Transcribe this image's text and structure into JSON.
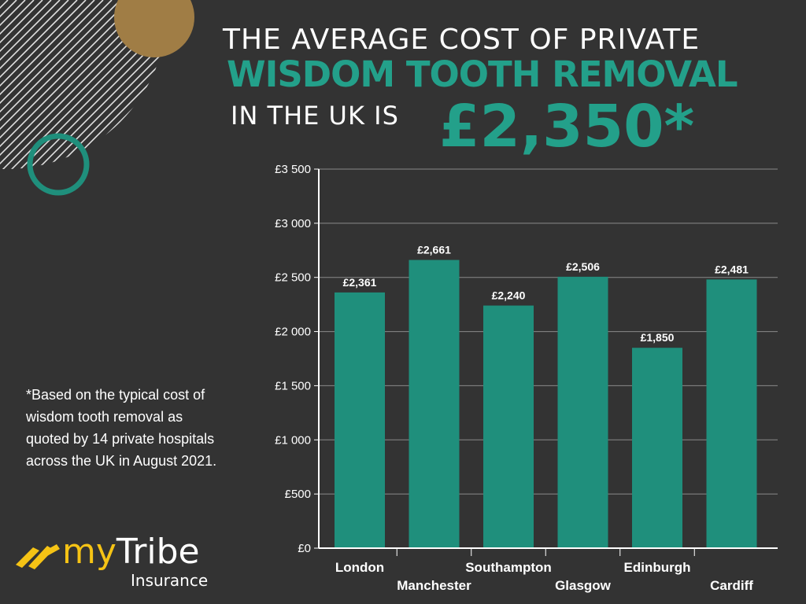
{
  "headline": {
    "line1": "THE AVERAGE COST OF PRIVATE",
    "line2": "WISDOM TOOTH REMOVAL",
    "line3": "IN THE UK IS",
    "price": "£2,350*"
  },
  "footnote": "*Based on the typical cost of wisdom tooth removal as quoted by 14 private hospitals across the UK in August 2021.",
  "logo": {
    "name_part1": "my",
    "name_part2": "Tribe",
    "subtitle": "Insurance"
  },
  "colors": {
    "background": "#333333",
    "accent_teal": "#23a08a",
    "bar_fill": "#1f8f7c",
    "logo_yellow": "#f5c315",
    "deco_gold": "#a07d45"
  },
  "chart_data": {
    "type": "bar",
    "categories": [
      "London",
      "Manchester",
      "Southampton",
      "Glasgow",
      "Edinburgh",
      "Cardiff"
    ],
    "values": [
      2361,
      2661,
      2240,
      2506,
      1850,
      2481
    ],
    "value_labels": [
      "£2,361",
      "£2,661",
      "£2,240",
      "£2,506",
      "£1,850",
      "£2,481"
    ],
    "yticks": [
      0,
      500,
      1000,
      1500,
      2000,
      2500,
      3000,
      3500
    ],
    "ytick_labels": [
      "£0",
      "£500",
      "£1 000",
      "£1 500",
      "£2 000",
      "£2 500",
      "£3 000",
      "£3 500"
    ],
    "ylim": [
      0,
      3500
    ],
    "grid": true,
    "title": "",
    "xlabel": "",
    "ylabel": ""
  }
}
